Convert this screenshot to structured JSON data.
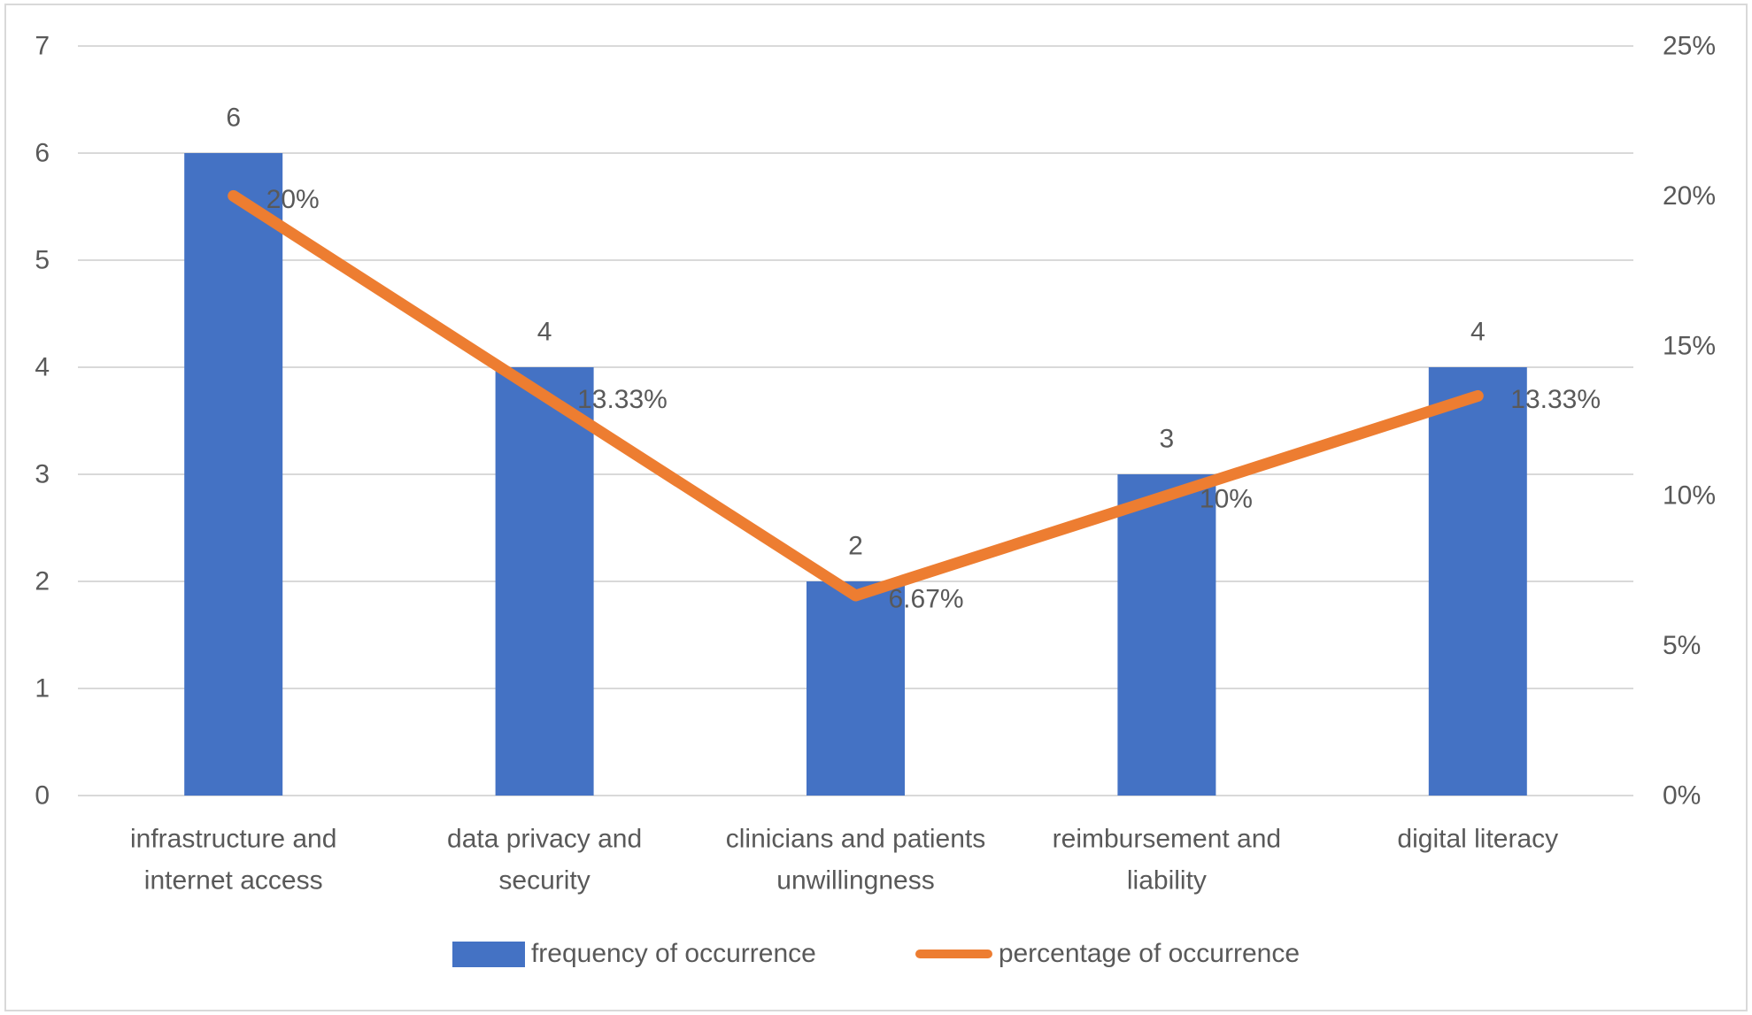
{
  "chart_data": {
    "type": "combo-bar-line",
    "title": "",
    "categories": [
      {
        "label": "infrastructure and internet access",
        "lines": [
          "infrastructure and",
          "internet access"
        ]
      },
      {
        "label": "data privacy and security",
        "lines": [
          "data privacy and",
          "security"
        ]
      },
      {
        "label": "clinicians and patients unwillingness",
        "lines": [
          "clinicians and patients",
          "unwillingness"
        ]
      },
      {
        "label": "reimbursement and liability",
        "lines": [
          "reimbursement and",
          "liability"
        ]
      },
      {
        "label": "digital literacy",
        "lines": [
          "digital literacy"
        ]
      }
    ],
    "series": [
      {
        "name": "frequency of occurrence",
        "type": "bar",
        "axis": "left",
        "color": "#4472C4",
        "values": [
          6,
          4,
          2,
          3,
          4
        ],
        "data_labels": [
          "6",
          "4",
          "2",
          "3",
          "4"
        ]
      },
      {
        "name": "percentage of occurrence",
        "type": "line",
        "axis": "right",
        "color": "#ED7D31",
        "values": [
          20,
          13.33,
          6.67,
          10,
          13.33
        ],
        "data_labels": [
          "20%",
          "13.33%",
          "6.67%",
          "10%",
          "13.33%"
        ]
      }
    ],
    "left_axis": {
      "min": 0,
      "max": 7,
      "ticks": [
        "0",
        "1",
        "2",
        "3",
        "4",
        "5",
        "6",
        "7"
      ]
    },
    "right_axis": {
      "min": 0,
      "max": 25,
      "ticks": [
        "0%",
        "5%",
        "10%",
        "15%",
        "20%",
        "25%"
      ]
    },
    "grid": true,
    "legend": {
      "position": "bottom",
      "items": [
        {
          "label": "frequency of occurrence",
          "swatch": "bar",
          "color": "#4472C4"
        },
        {
          "label": "percentage of occurrence",
          "swatch": "line",
          "color": "#ED7D31"
        }
      ]
    },
    "colors": {
      "gridline": "#D9D9D9",
      "axis_text": "#595959",
      "data_label_text": "#595959",
      "category_text": "#595959",
      "frame_border": "#D9D9D9",
      "background": "#FFFFFF"
    }
  }
}
